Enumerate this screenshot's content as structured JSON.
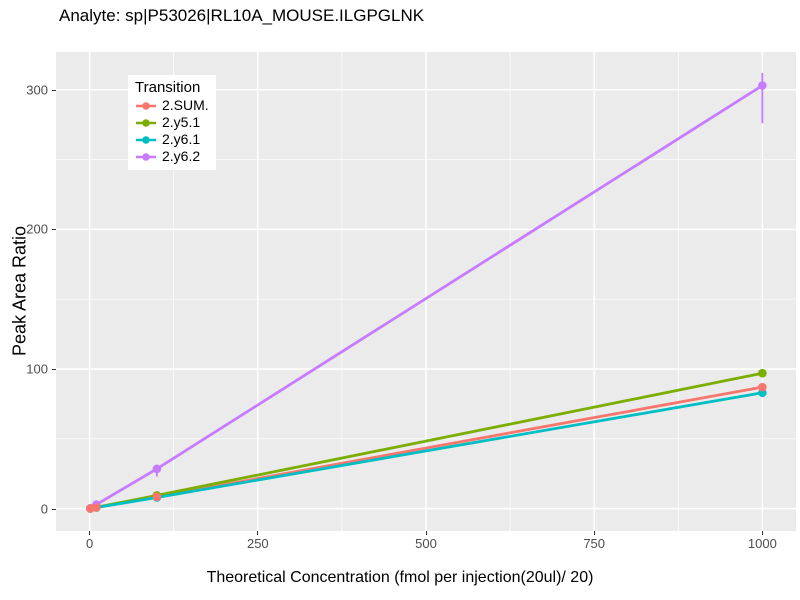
{
  "chart_data": {
    "type": "line",
    "title": "Analyte: sp|P53026|RL10A_MOUSE.ILGPGLNK",
    "xlabel": "Theoretical Concentration (fmol per injection(20ul)/ 20)",
    "ylabel": "Peak Area Ratio",
    "x_ticks": [
      0,
      250,
      500,
      750,
      1000
    ],
    "y_ticks": [
      0,
      100,
      200,
      300
    ],
    "x_minor_ticks": [
      125,
      375,
      625,
      875
    ],
    "y_minor_ticks": [
      50,
      150,
      250
    ],
    "xlim": [
      -50,
      1050
    ],
    "ylim": [
      -16,
      327
    ],
    "grid": true,
    "legend": {
      "title": "Transition",
      "position": "top-left-inside"
    },
    "series": [
      {
        "name": "2.SUM.",
        "color": "#F8766D",
        "x": [
          1,
          10,
          100,
          1000
        ],
        "y": [
          0.1,
          0.9,
          8.5,
          87
        ]
      },
      {
        "name": "2.y5.1",
        "color": "#7CAE00",
        "x": [
          1,
          10,
          100,
          1000
        ],
        "y": [
          0.1,
          1.0,
          9.5,
          97
        ]
      },
      {
        "name": "2.y6.1",
        "color": "#00BFC4",
        "x": [
          1,
          10,
          100,
          1000
        ],
        "y": [
          0.1,
          0.8,
          8.0,
          83
        ]
      },
      {
        "name": "2.y6.2",
        "color": "#C77CFF",
        "x": [
          1,
          10,
          100,
          1000
        ],
        "y": [
          0.3,
          2.9,
          28.5,
          303
        ],
        "error_bars": [
          {
            "x": 100,
            "ymin": 23,
            "ymax": 30
          },
          {
            "x": 1000,
            "ymin": 276,
            "ymax": 312
          }
        ]
      }
    ],
    "point_draw_order": [
      1,
      2,
      3,
      0
    ],
    "colors": {
      "panel_bg": "#EBEBEB",
      "grid_major": "#FFFFFF",
      "grid_minor": "#FFFFFF",
      "tick_text": "#4D4D4D",
      "tick_mark": "#333333",
      "title_text": "#000000"
    }
  }
}
